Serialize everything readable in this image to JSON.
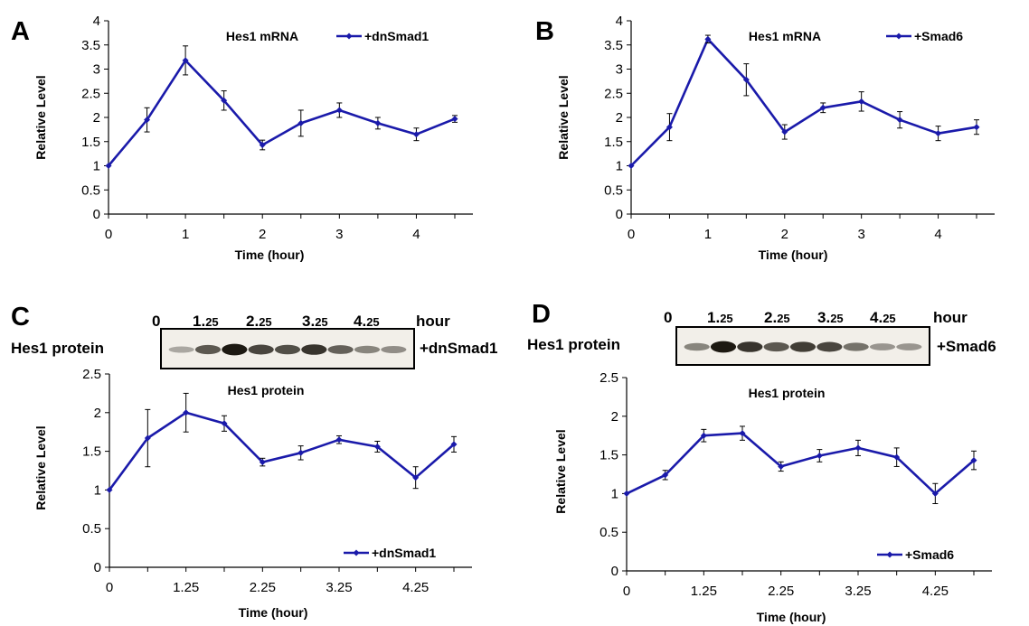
{
  "panel_labels": [
    "A",
    "B",
    "C",
    "D"
  ],
  "colors": {
    "series": "#1a1aaa",
    "axis": "#000000",
    "band": "#141008"
  },
  "blots": [
    {
      "row_label": "Hes1 protein",
      "condition": "+dnSmad1",
      "unit": "hour",
      "lanes": [
        {
          "major": "0",
          "minor": ""
        },
        {
          "major": "1.",
          "minor": "25"
        },
        {
          "major": "2.",
          "minor": "25"
        },
        {
          "major": "3.",
          "minor": "25"
        },
        {
          "major": "4.",
          "minor": "25"
        }
      ],
      "band_intensity": [
        0.15,
        0.6,
        0.95,
        0.7,
        0.65,
        0.8,
        0.55,
        0.35,
        0.3
      ]
    },
    {
      "row_label": "Hes1 protein",
      "condition": "+Smad6",
      "unit": "hour",
      "lanes": [
        {
          "major": "0",
          "minor": ""
        },
        {
          "major": "1.",
          "minor": "25"
        },
        {
          "major": "2.",
          "minor": "25"
        },
        {
          "major": "3.",
          "minor": "25"
        },
        {
          "major": "4.",
          "minor": "25"
        }
      ],
      "band_intensity": [
        0.35,
        0.95,
        0.8,
        0.6,
        0.75,
        0.7,
        0.45,
        0.25,
        0.25
      ]
    }
  ],
  "chart_data": [
    {
      "panel": "A",
      "type": "line",
      "title": "Hes1 mRNA",
      "xlabel": "Time (hour)",
      "ylabel": "Relative Level",
      "xticks": [
        "0",
        "1",
        "2",
        "3",
        "4"
      ],
      "x": [
        0,
        0.5,
        1,
        1.5,
        2,
        2.5,
        3,
        3.5,
        4,
        4.5
      ],
      "ylim": [
        0,
        4
      ],
      "yticks": [
        "0",
        "0.5",
        "1",
        "1.5",
        "2",
        "2.5",
        "3",
        "3.5",
        "4"
      ],
      "legend_position": "top-right",
      "series": [
        {
          "name": "+dnSmad1",
          "values": [
            1.0,
            1.95,
            3.18,
            2.35,
            1.43,
            1.88,
            2.15,
            1.88,
            1.65,
            1.97
          ],
          "errors": [
            0.0,
            0.25,
            0.3,
            0.2,
            0.1,
            0.27,
            0.15,
            0.12,
            0.13,
            0.07
          ]
        }
      ]
    },
    {
      "panel": "B",
      "type": "line",
      "title": "Hes1 mRNA",
      "xlabel": "Time (hour)",
      "ylabel": "Relative Level",
      "xticks": [
        "0",
        "1",
        "2",
        "3",
        "4"
      ],
      "x": [
        0,
        0.5,
        1,
        1.5,
        2,
        2.5,
        3,
        3.5,
        4,
        4.5
      ],
      "ylim": [
        0,
        4
      ],
      "yticks": [
        "0",
        "0.5",
        "1",
        "1.5",
        "2",
        "2.5",
        "3",
        "3.5",
        "4"
      ],
      "legend_position": "top-right",
      "series": [
        {
          "name": "+Smad6",
          "values": [
            1.0,
            1.8,
            3.62,
            2.78,
            1.7,
            2.2,
            2.33,
            1.95,
            1.67,
            1.8
          ],
          "errors": [
            0.0,
            0.28,
            0.08,
            0.33,
            0.15,
            0.1,
            0.2,
            0.17,
            0.15,
            0.15
          ]
        }
      ]
    },
    {
      "panel": "C",
      "type": "line",
      "title": "Hes1 protein",
      "xlabel": "Time (hour)",
      "ylabel": "Relative Level",
      "xticks": [
        "0",
        "1.25",
        "2.25",
        "3.25",
        "4.25"
      ],
      "x": [
        0,
        0.5,
        1,
        1.5,
        2,
        2.5,
        3,
        3.5,
        4,
        4.5
      ],
      "ylim": [
        0,
        2.5
      ],
      "yticks": [
        "0",
        "0.5",
        "1",
        "1.5",
        "2",
        "2.5"
      ],
      "legend_position": "bottom-right",
      "series": [
        {
          "name": "+dnSmad1",
          "values": [
            1.0,
            1.67,
            2.0,
            1.86,
            1.36,
            1.48,
            1.65,
            1.56,
            1.16,
            1.59
          ],
          "errors": [
            0.0,
            0.37,
            0.25,
            0.1,
            0.05,
            0.09,
            0.05,
            0.07,
            0.14,
            0.1
          ]
        }
      ]
    },
    {
      "panel": "D",
      "type": "line",
      "title": "Hes1 protein",
      "xlabel": "Time (hour)",
      "ylabel": "Relative Level",
      "xticks": [
        "0",
        "1.25",
        "2.25",
        "3.25",
        "4.25"
      ],
      "x": [
        0,
        0.5,
        1,
        1.5,
        2,
        2.5,
        3,
        3.5,
        4,
        4.5
      ],
      "ylim": [
        0,
        2.5
      ],
      "yticks": [
        "0",
        "0.5",
        "1",
        "1.5",
        "2",
        "2.5"
      ],
      "legend_position": "bottom-right",
      "series": [
        {
          "name": "+Smad6",
          "values": [
            1.0,
            1.24,
            1.75,
            1.78,
            1.35,
            1.49,
            1.59,
            1.47,
            1.0,
            1.43
          ],
          "errors": [
            0.0,
            0.06,
            0.08,
            0.09,
            0.06,
            0.08,
            0.1,
            0.12,
            0.13,
            0.12
          ]
        }
      ]
    }
  ]
}
